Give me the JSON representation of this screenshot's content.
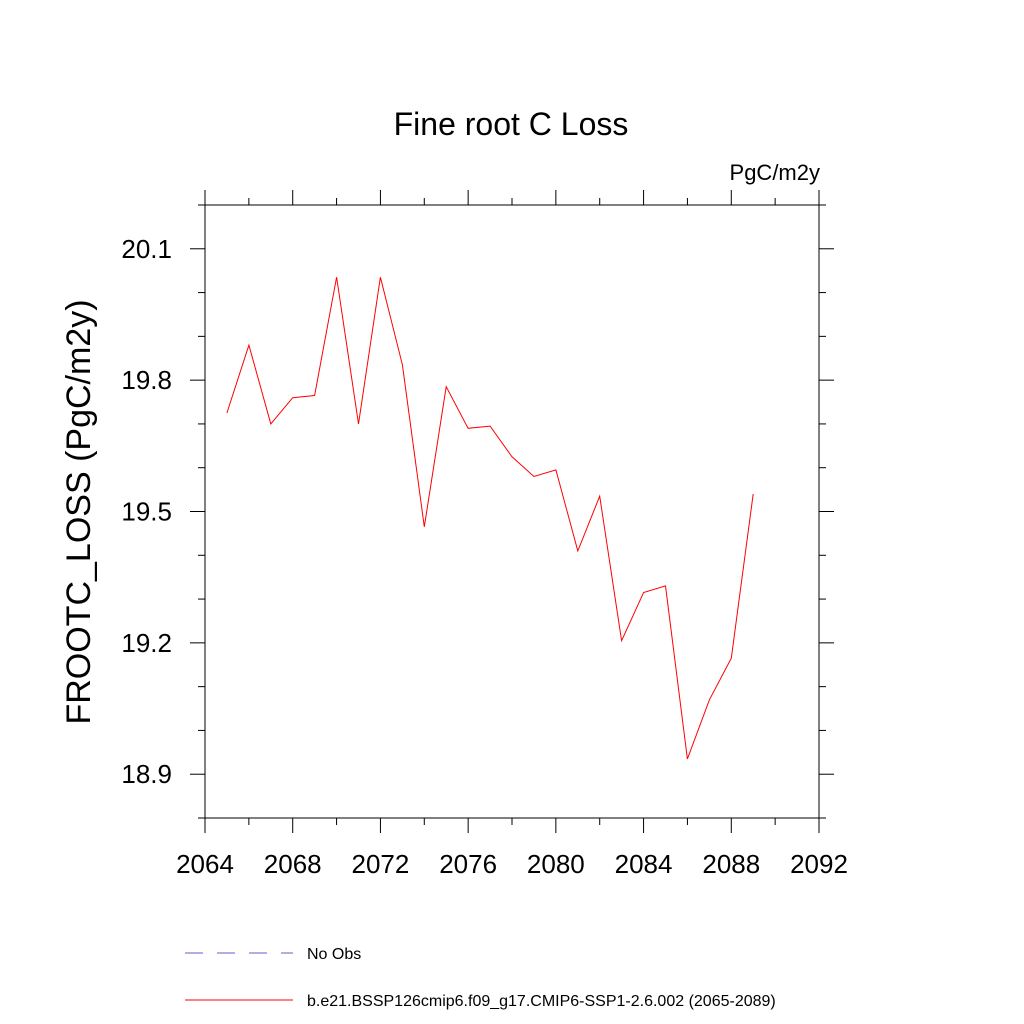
{
  "chart_data": {
    "type": "line",
    "title": "Fine root C Loss",
    "units": "PgC/m2y",
    "ylabel": "FROOTC_LOSS  (PgC/m2y)",
    "xlabel": "",
    "xlim": [
      2064,
      2092
    ],
    "ylim": [
      18.8,
      20.2
    ],
    "x_ticks": [
      2064,
      2068,
      2072,
      2076,
      2080,
      2084,
      2088,
      2092
    ],
    "y_ticks": [
      18.9,
      19.2,
      19.5,
      19.8,
      20.1
    ],
    "x_tick_labels": [
      "2064",
      "2068",
      "2072",
      "2076",
      "2080",
      "2084",
      "2088",
      "2092"
    ],
    "y_tick_labels": [
      "18.9",
      "19.2",
      "19.5",
      "19.8",
      "20.1"
    ],
    "grid": false,
    "legend_placement": "bottom",
    "series": [
      {
        "name": "b.e21.BSSP126cmip6.f09_g17.CMIP6-SSP1-2.6.002 (2065-2089)",
        "color": "#ff0000",
        "style": "solid",
        "x": [
          2065,
          2066,
          2067,
          2068,
          2069,
          2070,
          2071,
          2072,
          2073,
          2074,
          2075,
          2076,
          2077,
          2078,
          2079,
          2080,
          2081,
          2082,
          2083,
          2084,
          2085,
          2086,
          2087,
          2088,
          2089
        ],
        "values": [
          19.725,
          19.88,
          19.7,
          19.76,
          19.765,
          20.035,
          19.7,
          20.035,
          19.835,
          19.465,
          19.785,
          19.69,
          19.695,
          19.625,
          19.58,
          19.595,
          19.41,
          19.535,
          19.205,
          19.315,
          19.33,
          18.935,
          19.07,
          19.165,
          19.54
        ]
      },
      {
        "name": "No Obs",
        "color": "#6a5acd",
        "style": "dashed",
        "x": [],
        "values": []
      }
    ]
  }
}
